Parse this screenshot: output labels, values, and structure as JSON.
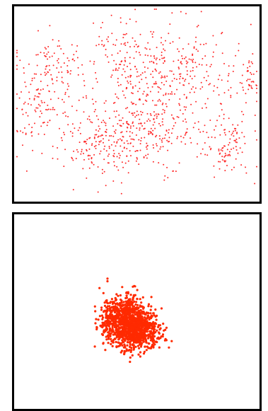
{
  "chart_data": [
    {
      "type": "scatter",
      "title": "",
      "xlabel": "",
      "ylabel": "",
      "grid": false,
      "legend": "none",
      "point_color": "#ff2a2a",
      "point_count": 1100,
      "distribution": "dispersed",
      "clusters": [
        {
          "cx": 0.48,
          "cy": 0.28,
          "sx": 0.1,
          "sy": 0.14,
          "n": 170
        },
        {
          "cx": 0.14,
          "cy": 0.34,
          "sx": 0.07,
          "sy": 0.1,
          "n": 110
        },
        {
          "cx": 0.35,
          "cy": 0.7,
          "sx": 0.1,
          "sy": 0.09,
          "n": 190
        },
        {
          "cx": 0.58,
          "cy": 0.6,
          "sx": 0.1,
          "sy": 0.13,
          "n": 180
        },
        {
          "cx": 0.74,
          "cy": 0.3,
          "sx": 0.1,
          "sy": 0.13,
          "n": 130
        },
        {
          "cx": 0.88,
          "cy": 0.72,
          "sx": 0.05,
          "sy": 0.1,
          "n": 90
        },
        {
          "cx": 0.06,
          "cy": 0.55,
          "sx": 0.04,
          "sy": 0.1,
          "n": 60
        },
        {
          "cx": 0.97,
          "cy": 0.36,
          "sx": 0.02,
          "sy": 0.07,
          "n": 30
        },
        {
          "cx": 0.5,
          "cy": 0.5,
          "sx": 0.26,
          "sy": 0.2,
          "n": 140
        }
      ],
      "xlim": [
        0,
        1
      ],
      "ylim": [
        0,
        1
      ]
    },
    {
      "type": "scatter",
      "title": "",
      "xlabel": "",
      "ylabel": "",
      "grid": false,
      "legend": "none",
      "point_color": "#ff2a00",
      "point_count": 1400,
      "distribution": "concentrated",
      "clusters": [
        {
          "cx": 0.45,
          "cy": 0.55,
          "sx": 0.05,
          "sy": 0.065,
          "n": 900
        },
        {
          "cx": 0.51,
          "cy": 0.6,
          "sx": 0.045,
          "sy": 0.05,
          "n": 500
        }
      ],
      "xlim": [
        0,
        1
      ],
      "ylim": [
        0,
        1
      ]
    }
  ]
}
